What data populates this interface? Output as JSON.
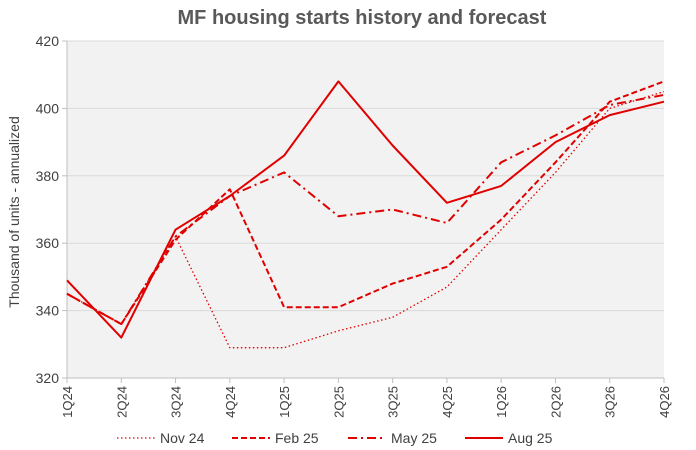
{
  "chart_data": {
    "type": "line",
    "title": "MF housing starts history and forecast",
    "xlabel": "",
    "ylabel": "Thousand of units - annualized",
    "ylim": [
      320,
      420
    ],
    "yticks": [
      320,
      340,
      360,
      380,
      400,
      420
    ],
    "grid": true,
    "legend_position": "bottom",
    "categories": [
      "1Q24",
      "2Q24",
      "3Q24",
      "4Q24",
      "1Q25",
      "2Q25",
      "3Q25",
      "4Q25",
      "1Q26",
      "2Q26",
      "3Q26",
      "4Q26"
    ],
    "series": [
      {
        "name": "Nov 24",
        "dash": "dotted",
        "values": [
          345,
          336,
          362,
          329,
          329,
          334,
          338,
          347,
          364,
          381,
          400,
          405
        ]
      },
      {
        "name": "Feb 25",
        "dash": "dashed",
        "values": [
          345,
          336,
          361,
          376,
          341,
          341,
          348,
          353,
          367,
          384,
          402,
          408
        ]
      },
      {
        "name": "May 25",
        "dash": "dashdot",
        "values": [
          345,
          336,
          362,
          374,
          381,
          368,
          370,
          366,
          384,
          392,
          401,
          404
        ]
      },
      {
        "name": "Aug 25",
        "dash": "solid",
        "values": [
          349,
          332,
          364,
          374,
          386,
          408,
          389,
          372,
          377,
          390,
          398,
          402
        ]
      }
    ],
    "colors": {
      "series": "#e00000",
      "plot_background": "#f2f2f2",
      "gridline": "#d9d9d9",
      "axis": "#bfbfbf",
      "text": "#404040",
      "title": "#595959"
    }
  }
}
